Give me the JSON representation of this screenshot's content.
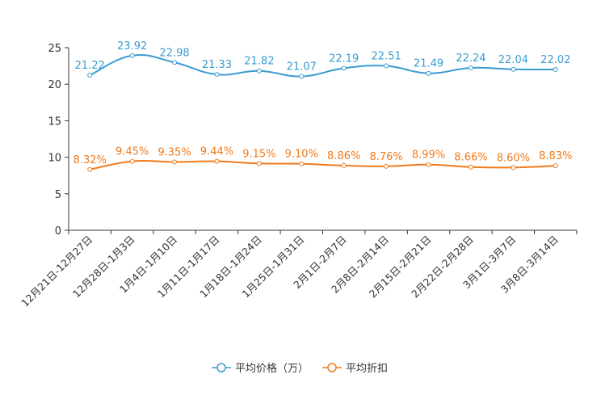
{
  "chart_data": {
    "type": "line",
    "title": "",
    "xlabel": "",
    "ylabel": "",
    "ylim": [
      0,
      25
    ],
    "yticks": [
      0,
      5,
      10,
      15,
      20,
      25
    ],
    "grid": false,
    "legend_position": "bottom-center",
    "categories": [
      "12月21日-12月27日",
      "12月28日-1月3日",
      "1月4日-1月10日",
      "1月11日-1月17日",
      "1月18日-1月24日",
      "1月25日-1月31日",
      "2月1日-2月7日",
      "2月8日-2月14日",
      "2月15日-2月21日",
      "2月22日-2月28日",
      "3月1日-3月7日",
      "3月8日-3月14日"
    ],
    "series": [
      {
        "name": "平均价格（万）",
        "color": "#3a9bd1",
        "values": [
          21.22,
          23.92,
          22.98,
          21.33,
          21.82,
          21.07,
          22.19,
          22.51,
          21.49,
          22.24,
          22.04,
          22.02
        ],
        "labels": [
          "21.22",
          "23.92",
          "22.98",
          "21.33",
          "21.82",
          "21.07",
          "22.19",
          "22.51",
          "21.49",
          "22.24",
          "22.04",
          "22.02"
        ]
      },
      {
        "name": "平均折扣",
        "color": "#f07b1c",
        "values": [
          8.32,
          9.45,
          9.35,
          9.44,
          9.15,
          9.1,
          8.86,
          8.76,
          8.99,
          8.66,
          8.6,
          8.83
        ],
        "labels": [
          "8.32%",
          "9.45%",
          "9.35%",
          "9.44%",
          "9.15%",
          "9.10%",
          "8.86%",
          "8.76%",
          "8.99%",
          "8.66%",
          "8.60%",
          "8.83%"
        ]
      }
    ]
  }
}
